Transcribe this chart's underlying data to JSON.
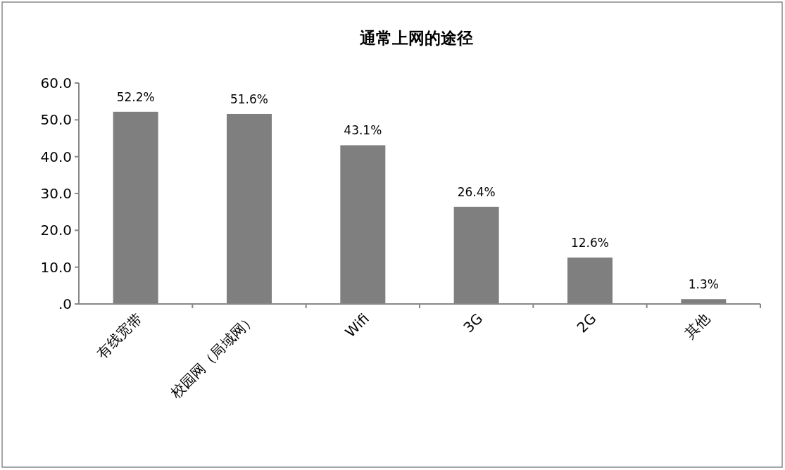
{
  "chart_data": {
    "type": "bar",
    "title": "通常上网的途径",
    "categories": [
      "有线宽带",
      "校园网（局域网）",
      "Wifi",
      "3G",
      "2G",
      "其他"
    ],
    "values": [
      52.2,
      51.6,
      43.1,
      26.4,
      12.6,
      1.3
    ],
    "value_labels": [
      "52.2%",
      "51.6%",
      "43.1%",
      "26.4%",
      "12.6%",
      "1.3%"
    ],
    "color": "#7f7f7f",
    "ylim": [
      0,
      60
    ],
    "yticks": [
      {
        "value": 0,
        "label": ".0"
      },
      {
        "value": 10,
        "label": "10.0"
      },
      {
        "value": 20,
        "label": "20.0"
      },
      {
        "value": 30,
        "label": "30.0"
      },
      {
        "value": 40,
        "label": "40.0"
      },
      {
        "value": 50,
        "label": "50.0"
      },
      {
        "value": 60,
        "label": "60.0"
      }
    ]
  }
}
